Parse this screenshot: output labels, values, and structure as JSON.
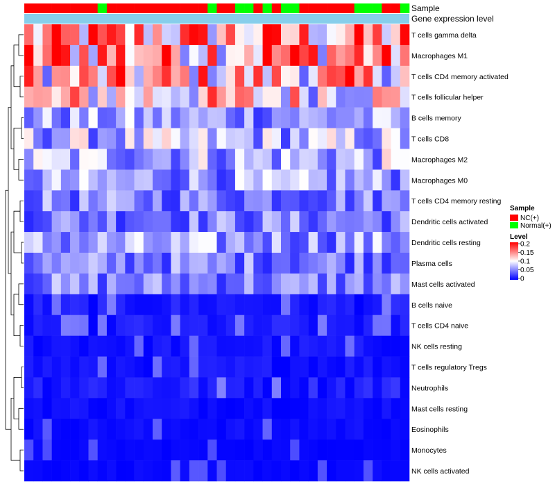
{
  "chart_data": {
    "type": "heatmap",
    "annotation_labels": {
      "sample": "Sample",
      "gene": "Gene expression level"
    },
    "sample_groups": [
      "NC",
      "NC",
      "NC",
      "NC",
      "NC",
      "NC",
      "NC",
      "NC",
      "Normal",
      "NC",
      "NC",
      "NC",
      "NC",
      "NC",
      "NC",
      "NC",
      "NC",
      "NC",
      "NC",
      "NC",
      "Normal",
      "NC",
      "NC",
      "Normal",
      "Normal",
      "NC",
      "Normal",
      "NC",
      "Normal",
      "Normal",
      "NC",
      "NC",
      "NC",
      "NC",
      "NC",
      "NC",
      "Normal",
      "Normal",
      "Normal",
      "NC",
      "NC",
      "Normal"
    ],
    "rows": [
      "T cells gamma delta",
      "Macrophages M1",
      "T cells CD4 memory activated",
      "T cells follicular helper",
      "B cells memory",
      "T cells CD8",
      "Macrophages M2",
      "Macrophages M0",
      "T cells CD4 memory resting",
      "Dendritic cells activated",
      "Dendritic cells resting",
      "Plasma cells",
      "Mast cells activated",
      "B cells naive",
      "T cells CD4 naive",
      "NK cells resting",
      "T cells regulatory  Tregs",
      "Neutrophils",
      "Mast cells resting",
      "Eosinophils",
      "Monocytes",
      "NK cells activated"
    ],
    "row_means": [
      0.13,
      0.15,
      0.12,
      0.11,
      0.06,
      0.07,
      0.07,
      0.06,
      0.05,
      0.05,
      0.06,
      0.05,
      0.05,
      0.02,
      0.02,
      0.015,
      0.015,
      0.025,
      0.012,
      0.01,
      0.005,
      0.006
    ],
    "values_note": "42 samples per row; per-cell expression levels (0-0.2) read approximately from colors",
    "legend": {
      "sample_title": "Sample",
      "sample_entries": [
        {
          "name": "NC(+)",
          "color": "#ff0000"
        },
        {
          "name": "Normal(+)",
          "color": "#00ff00"
        }
      ],
      "level_title": "Level",
      "level_ticks": [
        "0.2",
        "0.15",
        "0.1",
        "0.05",
        "0"
      ],
      "range": [
        0,
        0.2
      ],
      "colors": [
        "#0000ff",
        "#ffffff",
        "#ff0000"
      ]
    },
    "annotation_colors": {
      "gene": "#87ceeb"
    }
  }
}
